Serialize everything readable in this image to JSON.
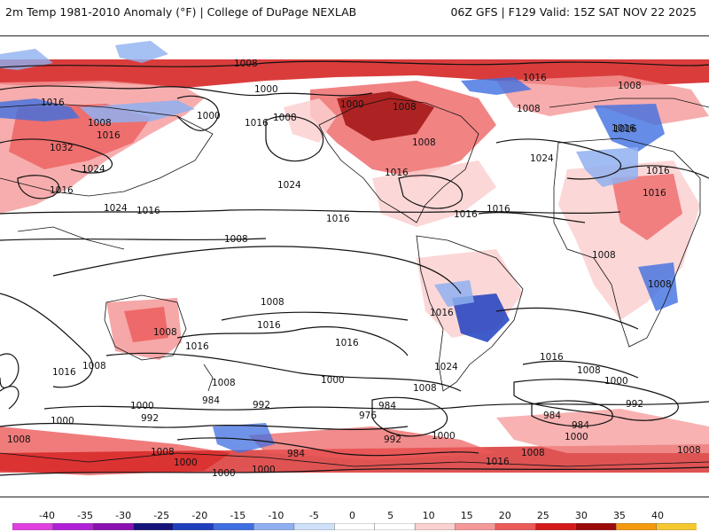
{
  "header": {
    "left_title": "2m Temp 1981-2010 Anomaly (°F) | College of DuPage NEXLAB",
    "right_title": "06Z GFS | F129 Valid: 15Z SAT NOV 22 2025"
  },
  "map": {
    "projection": "global cylindrical, Pacific-centered",
    "isobar_labels": [
      "1008",
      "1016",
      "1000",
      "1000",
      "1008",
      "1016",
      "1000",
      "1008",
      "1008",
      "1016",
      "1016",
      "1032",
      "1024",
      "1008",
      "1016",
      "1016",
      "1024",
      "1024",
      "1024",
      "1016",
      "1016",
      "1016",
      "1016",
      "1008",
      "1016",
      "1008",
      "1016",
      "1008",
      "1016",
      "1008",
      "1016",
      "1016",
      "1008",
      "1008",
      "1008",
      "1016",
      "1008",
      "1016",
      "1016",
      "1024",
      "1016",
      "1008",
      "1008",
      "1000",
      "992",
      "1000",
      "984",
      "992",
      "976",
      "984",
      "1000",
      "992",
      "984",
      "1008",
      "1000",
      "1000",
      "1008",
      "1016",
      "1008",
      "1000",
      "1000",
      "984",
      "992",
      "984",
      "1000",
      "1008",
      "1016",
      "1000",
      "1008"
    ]
  },
  "colorbar": {
    "ticks": [
      "-40",
      "-35",
      "-30",
      "-25",
      "-20",
      "-15",
      "-10",
      "-5",
      "0",
      "5",
      "10",
      "15",
      "20",
      "25",
      "30",
      "35",
      "40"
    ],
    "colors": [
      "#e040e0",
      "#b020d8",
      "#8a10b0",
      "#14147a",
      "#1f3fbf",
      "#3f6fe0",
      "#8fb0f0",
      "#cfe0fa",
      "#ffffff",
      "#ffffff",
      "#fbd0d0",
      "#f59898",
      "#ec5a5a",
      "#d41a1a",
      "#9c0a0a",
      "#f59a10",
      "#f5c830"
    ]
  }
}
